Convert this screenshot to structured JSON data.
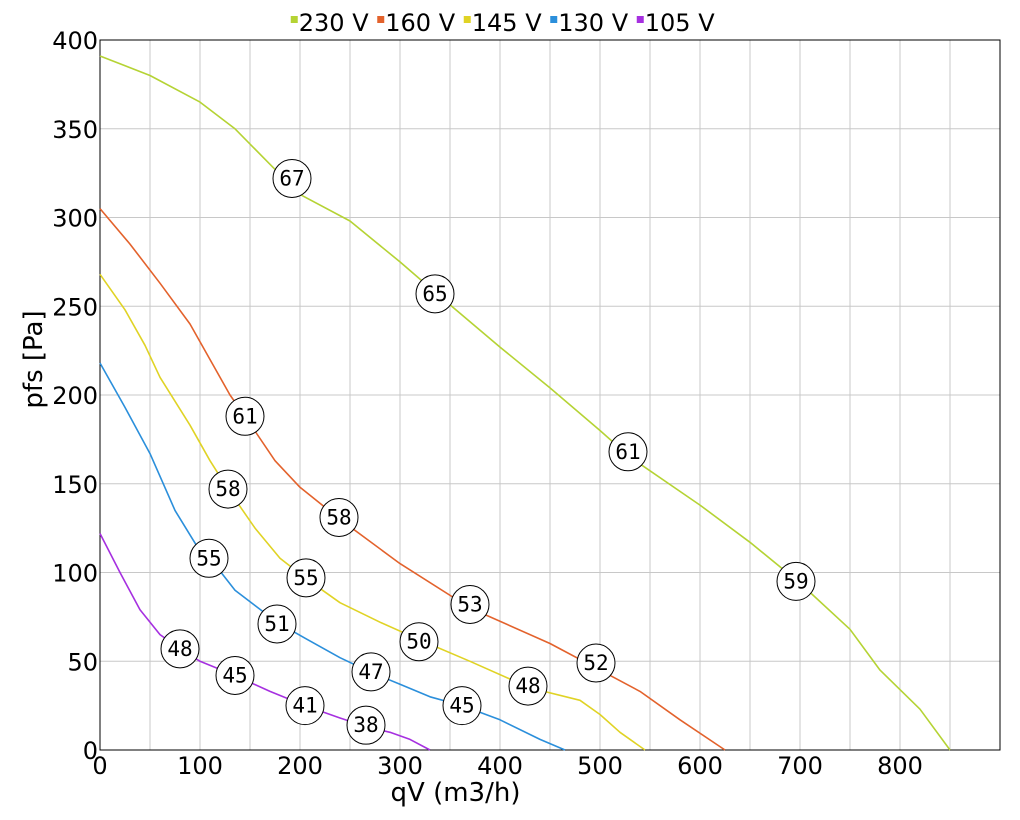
{
  "chart_data": {
    "type": "line",
    "xlabel": "qV (m3/h)",
    "ylabel": "pfs [Pa]",
    "xlim": [
      0,
      900
    ],
    "ylim": [
      0,
      400
    ],
    "xticks": [
      0,
      100,
      200,
      300,
      400,
      500,
      600,
      700,
      800
    ],
    "yticks": [
      0,
      50,
      100,
      150,
      200,
      250,
      300,
      350,
      400
    ],
    "grid": true,
    "legend_position": "top-center",
    "series": [
      {
        "name": "230 V",
        "color": "#b5d334",
        "points": [
          [
            0,
            391
          ],
          [
            50,
            380
          ],
          [
            100,
            365
          ],
          [
            135,
            350
          ],
          [
            170,
            330
          ],
          [
            200,
            313
          ],
          [
            250,
            298
          ],
          [
            300,
            275
          ],
          [
            335,
            258
          ],
          [
            400,
            227
          ],
          [
            450,
            204
          ],
          [
            500,
            180
          ],
          [
            530,
            165
          ],
          [
            600,
            138
          ],
          [
            650,
            117
          ],
          [
            700,
            94
          ],
          [
            750,
            68
          ],
          [
            780,
            45
          ],
          [
            820,
            23
          ],
          [
            850,
            0
          ]
        ],
        "labels": [
          {
            "x": 192,
            "y": 322,
            "text": "67"
          },
          {
            "x": 335,
            "y": 257,
            "text": "65"
          },
          {
            "x": 528,
            "y": 168,
            "text": "61"
          },
          {
            "x": 696,
            "y": 95,
            "text": "59"
          }
        ]
      },
      {
        "name": "160 V",
        "color": "#e3622c",
        "points": [
          [
            0,
            305
          ],
          [
            30,
            285
          ],
          [
            60,
            263
          ],
          [
            90,
            240
          ],
          [
            110,
            220
          ],
          [
            130,
            200
          ],
          [
            145,
            188
          ],
          [
            175,
            163
          ],
          [
            200,
            148
          ],
          [
            240,
            130
          ],
          [
            300,
            105
          ],
          [
            370,
            80
          ],
          [
            450,
            60
          ],
          [
            500,
            45
          ],
          [
            540,
            33
          ],
          [
            580,
            17
          ],
          [
            625,
            0
          ]
        ],
        "labels": [
          {
            "x": 145,
            "y": 188,
            "text": "61"
          },
          {
            "x": 239,
            "y": 131,
            "text": "58"
          },
          {
            "x": 370,
            "y": 82,
            "text": "53"
          },
          {
            "x": 496,
            "y": 49,
            "text": "52"
          }
        ]
      },
      {
        "name": "145 V",
        "color": "#e0d325",
        "points": [
          [
            0,
            268
          ],
          [
            25,
            248
          ],
          [
            45,
            228
          ],
          [
            60,
            210
          ],
          [
            90,
            183
          ],
          [
            110,
            163
          ],
          [
            128,
            147
          ],
          [
            155,
            125
          ],
          [
            180,
            108
          ],
          [
            205,
            97
          ],
          [
            240,
            83
          ],
          [
            280,
            72
          ],
          [
            320,
            62
          ],
          [
            370,
            50
          ],
          [
            430,
            35
          ],
          [
            480,
            28
          ],
          [
            500,
            20
          ],
          [
            520,
            10
          ],
          [
            545,
            0
          ]
        ],
        "labels": [
          {
            "x": 128,
            "y": 147,
            "text": "58"
          },
          {
            "x": 206,
            "y": 97,
            "text": "55"
          },
          {
            "x": 319,
            "y": 61,
            "text": "50"
          },
          {
            "x": 428,
            "y": 36,
            "text": "48"
          }
        ]
      },
      {
        "name": "130 V",
        "color": "#2b8fdb",
        "points": [
          [
            0,
            218
          ],
          [
            25,
            193
          ],
          [
            50,
            167
          ],
          [
            75,
            135
          ],
          [
            100,
            112
          ],
          [
            110,
            108
          ],
          [
            135,
            90
          ],
          [
            177,
            72
          ],
          [
            205,
            63
          ],
          [
            240,
            52
          ],
          [
            270,
            44
          ],
          [
            300,
            37
          ],
          [
            330,
            30
          ],
          [
            362,
            25
          ],
          [
            400,
            17
          ],
          [
            440,
            6
          ],
          [
            465,
            0
          ]
        ],
        "labels": [
          {
            "x": 109,
            "y": 108,
            "text": "55"
          },
          {
            "x": 177,
            "y": 71,
            "text": "51"
          },
          {
            "x": 271,
            "y": 44,
            "text": "47"
          },
          {
            "x": 362,
            "y": 25,
            "text": "45"
          }
        ]
      },
      {
        "name": "105 V",
        "color": "#a630e0",
        "points": [
          [
            0,
            122
          ],
          [
            20,
            100
          ],
          [
            40,
            79
          ],
          [
            60,
            65
          ],
          [
            80,
            57
          ],
          [
            100,
            50
          ],
          [
            135,
            42
          ],
          [
            170,
            33
          ],
          [
            205,
            25
          ],
          [
            240,
            18
          ],
          [
            267,
            13
          ],
          [
            290,
            10
          ],
          [
            310,
            6
          ],
          [
            330,
            0
          ]
        ],
        "labels": [
          {
            "x": 80,
            "y": 57,
            "text": "48"
          },
          {
            "x": 135,
            "y": 42,
            "text": "45"
          },
          {
            "x": 205,
            "y": 25,
            "text": "41"
          },
          {
            "x": 266,
            "y": 14,
            "text": "38"
          }
        ]
      }
    ]
  }
}
